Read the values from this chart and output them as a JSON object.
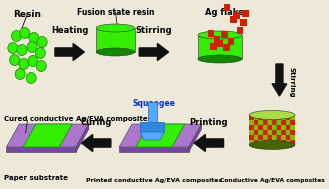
{
  "background_color": "#ede8d8",
  "labels": {
    "resin": "Resin",
    "fusion_state_resin": "Fusion state resin",
    "ag_flakes": "Ag flakes",
    "heating": "Heating",
    "stirring1": "Stirring",
    "stirring2": "Stirring",
    "squeegee": "Squeegee",
    "printing": "Printing",
    "curing": "Curing",
    "cured": "Cured conductive Ag/EVA composites",
    "paper": "Paper substrate",
    "printed": "Printed conductive Ag/EVA composites",
    "conductive": "Conductive Ag/EVA composites"
  },
  "colors": {
    "green_bright": "#33ee00",
    "green_mid": "#22cc00",
    "green_dark": "#118800",
    "red_sq": "#cc2200",
    "blue_light": "#55aaff",
    "blue_mid": "#3388dd",
    "blue_dark": "#2266bb",
    "purple_top": "#aa77cc",
    "purple_side": "#7744aa",
    "black": "#111111",
    "bg": "#ede8d8"
  }
}
